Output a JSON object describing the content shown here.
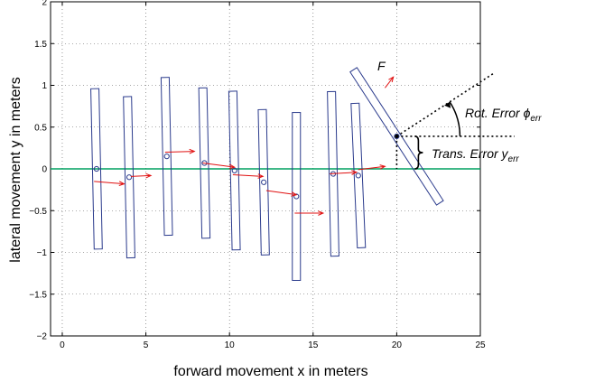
{
  "chart_data": {
    "type": "scatter",
    "title": "",
    "xlabel": "forward movement x in meters",
    "ylabel": "lateral movement y in meters",
    "xlim": [
      -0.7,
      25
    ],
    "ylim": [
      -2,
      2
    ],
    "xticks": [
      0,
      5,
      10,
      15,
      20,
      25
    ],
    "yticks": [
      -2,
      -1.5,
      -1,
      -0.5,
      0,
      0.5,
      1,
      1.5,
      2
    ],
    "xtick_labels": [
      "0",
      "5",
      "10",
      "15",
      "20",
      "25"
    ],
    "ytick_labels": [
      "−2",
      "−1.5",
      "−1",
      "−0.5",
      "0",
      "0.5",
      "1",
      "1.5",
      "2"
    ],
    "grid": true,
    "reference_line": {
      "y": 0,
      "color": "#00a060"
    },
    "colors": {
      "bars": "#2a3a8c",
      "arrows": "#e01010",
      "grid": "#555555"
    },
    "bodies": [
      {
        "x": 2.05,
        "y": 0.0,
        "length": 1.92,
        "angle_deg": 1.2
      },
      {
        "x": 4.0,
        "y": -0.1,
        "length": 1.93,
        "angle_deg": 1.2
      },
      {
        "x": 6.25,
        "y": 0.15,
        "length": 1.89,
        "angle_deg": 1.2
      },
      {
        "x": 8.5,
        "y": 0.07,
        "length": 1.8,
        "angle_deg": 1.2
      },
      {
        "x": 10.3,
        "y": -0.02,
        "length": 1.9,
        "angle_deg": 1.2
      },
      {
        "x": 12.05,
        "y": -0.16,
        "length": 1.74,
        "angle_deg": 1.2
      },
      {
        "x": 14.0,
        "y": -0.33,
        "length": 2.01,
        "angle_deg": 0.0
      },
      {
        "x": 16.2,
        "y": -0.06,
        "length": 1.97,
        "angle_deg": 1.2
      },
      {
        "x": 17.7,
        "y": -0.08,
        "length": 1.73,
        "angle_deg": 2.5
      },
      {
        "x": 20.0,
        "y": 0.39,
        "length": 1.9,
        "angle_deg": 33.0
      }
    ],
    "forces": [
      {
        "x0": 1.9,
        "y0": -0.15,
        "x1": 3.7,
        "y1": -0.18
      },
      {
        "x0": 4.1,
        "y0": -0.09,
        "x1": 5.3,
        "y1": -0.08
      },
      {
        "x0": 6.15,
        "y0": 0.2,
        "x1": 7.9,
        "y1": 0.21
      },
      {
        "x0": 8.4,
        "y0": 0.07,
        "x1": 10.3,
        "y1": 0.02
      },
      {
        "x0": 10.2,
        "y0": -0.07,
        "x1": 12.0,
        "y1": -0.09
      },
      {
        "x0": 12.2,
        "y0": -0.26,
        "x1": 14.0,
        "y1": -0.31
      },
      {
        "x0": 13.9,
        "y0": -0.53,
        "x1": 15.6,
        "y1": -0.53
      },
      {
        "x0": 16.0,
        "y0": -0.06,
        "x1": 17.6,
        "y1": -0.04
      },
      {
        "x0": 17.7,
        "y0": -0.01,
        "x1": 19.3,
        "y1": 0.03
      },
      {
        "x0": 19.3,
        "y0": 0.97,
        "x1": 19.8,
        "y1": 1.1
      }
    ],
    "annotations": {
      "force_label": "F",
      "rot_error_label": "Rot. Error ϕ",
      "rot_error_sub": "err",
      "trans_error_label": "Trans. Error y",
      "trans_error_sub": "err"
    }
  }
}
